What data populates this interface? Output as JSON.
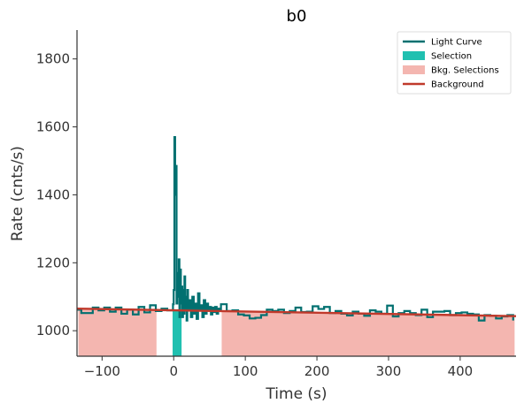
{
  "chart_data": {
    "type": "line",
    "title": "b0",
    "xlabel": "Time (s)",
    "ylabel": "Rate (cnts/s)",
    "xlim": [
      -135,
      478
    ],
    "ylim": [
      925,
      1885
    ],
    "xticks": [
      -100,
      0,
      100,
      200,
      300,
      400
    ],
    "yticks": [
      1000,
      1200,
      1400,
      1600,
      1800
    ],
    "grid": false,
    "legend_position": "top-right",
    "legend": [
      {
        "label": "Light Curve",
        "kind": "line",
        "color": "#007070"
      },
      {
        "label": "Selection",
        "kind": "patch",
        "color": "#20c0b0"
      },
      {
        "label": "Bkg. Selections",
        "kind": "patch",
        "color": "#f4b6b0"
      },
      {
        "label": "Background",
        "kind": "line",
        "color": "#c0392b"
      }
    ],
    "selection": {
      "x_range": [
        -1.5,
        11
      ]
    },
    "bkg_selections": [
      {
        "x_range": [
          -133,
          -24
        ]
      },
      {
        "x_range": [
          67,
          476
        ]
      }
    ],
    "background_fit": {
      "x": [
        -135,
        478
      ],
      "y": [
        1065,
        1043
      ]
    },
    "light_curve": {
      "step_x": [
        -135,
        -129,
        -121,
        -113,
        -105,
        -97,
        -89,
        -81,
        -73,
        -65,
        -57,
        -49,
        -41,
        -33,
        -25,
        -17,
        -9,
        -1,
        0,
        1,
        2,
        3,
        4,
        5,
        6,
        7,
        8,
        9,
        10,
        11,
        12,
        13,
        14,
        15,
        16,
        17,
        18,
        19,
        20,
        22,
        24,
        26,
        28,
        30,
        32,
        34,
        36,
        38,
        40,
        42,
        44,
        46,
        48,
        50,
        52,
        54,
        56,
        58,
        60,
        62,
        64,
        66,
        74,
        82,
        90,
        98,
        106,
        114,
        122,
        130,
        138,
        146,
        154,
        162,
        170,
        178,
        186,
        194,
        202,
        210,
        218,
        226,
        234,
        242,
        250,
        258,
        266,
        274,
        282,
        290,
        298,
        306,
        314,
        322,
        330,
        338,
        346,
        354,
        362,
        370,
        378,
        386,
        394,
        402,
        410,
        418,
        426,
        434,
        442,
        450,
        458,
        466,
        474
      ],
      "y": [
        1062,
        1052,
        1052,
        1068,
        1060,
        1068,
        1056,
        1068,
        1050,
        1062,
        1048,
        1070,
        1054,
        1075,
        1058,
        1065,
        1060,
        1078,
        1120,
        1570,
        1400,
        1485,
        1080,
        1170,
        1100,
        1210,
        1040,
        1180,
        1080,
        1130,
        1040,
        1120,
        1050,
        1160,
        1065,
        1100,
        1030,
        1120,
        1060,
        1090,
        1040,
        1100,
        1050,
        1080,
        1035,
        1110,
        1060,
        1075,
        1040,
        1090,
        1050,
        1080,
        1060,
        1070,
        1048,
        1068,
        1055,
        1070,
        1050,
        1065,
        1058,
        1078,
        1058,
        1060,
        1048,
        1045,
        1036,
        1038,
        1046,
        1062,
        1058,
        1062,
        1052,
        1058,
        1068,
        1055,
        1056,
        1072,
        1064,
        1070,
        1052,
        1058,
        1050,
        1045,
        1056,
        1050,
        1044,
        1060,
        1056,
        1050,
        1074,
        1042,
        1052,
        1058,
        1052,
        1046,
        1062,
        1040,
        1056,
        1056,
        1058,
        1046,
        1052,
        1054,
        1050,
        1048,
        1030,
        1046,
        1044,
        1036,
        1042,
        1046,
        1030
      ]
    }
  }
}
